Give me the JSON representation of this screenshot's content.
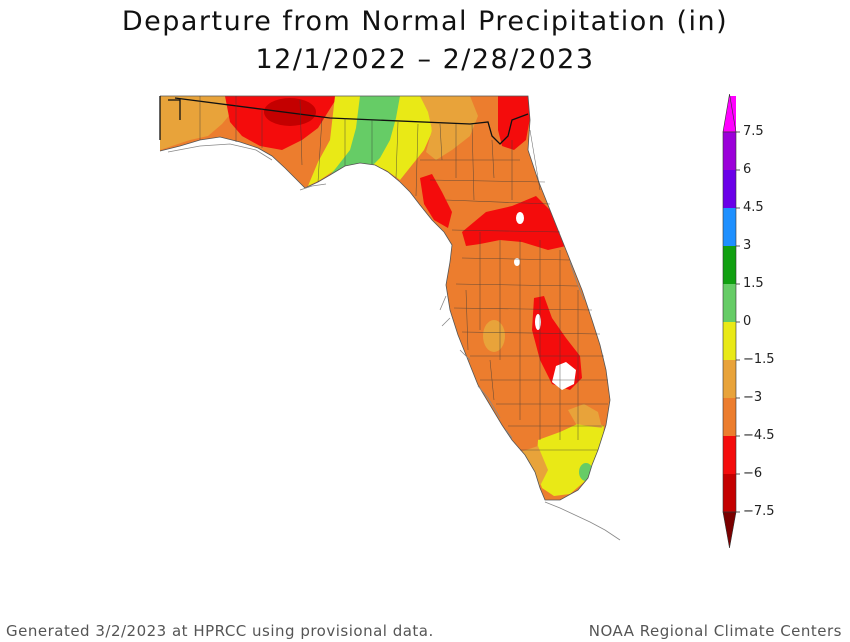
{
  "title": {
    "line1": "Departure from Normal Precipitation (in)",
    "line2": "12/1/2022 – 2/28/2023"
  },
  "legend": {
    "unit": "in",
    "ticks": [
      "7.5",
      "6",
      "4.5",
      "3",
      "1.5",
      "0",
      "−1.5",
      "−3",
      "−4.5",
      "−6",
      "−7.5"
    ],
    "bins": [
      {
        "range": ">7.5",
        "color": "#ff00ff"
      },
      {
        "range": "6 to 7.5",
        "color": "#9b00d9"
      },
      {
        "range": "4.5 to 6",
        "color": "#6a00e8"
      },
      {
        "range": "3 to 4.5",
        "color": "#1e90ff"
      },
      {
        "range": "1.5 to 3",
        "color": "#11a011"
      },
      {
        "range": "0 to 1.5",
        "color": "#66cc66"
      },
      {
        "range": "-1.5 to 0",
        "color": "#e9e916"
      },
      {
        "range": "-3 to -1.5",
        "color": "#e8a33a"
      },
      {
        "range": "-4.5 to -3",
        "color": "#ec7d2e"
      },
      {
        "range": "-6 to -4.5",
        "color": "#f40c0c"
      },
      {
        "range": "-7.5 to -6",
        "color": "#c40000"
      },
      {
        "range": "<-7.5",
        "color": "#7a0000"
      }
    ]
  },
  "map": {
    "region": "Florida",
    "dominant_category": "-4.5 to -3",
    "wetter_areas": [
      "Apalachicola / Big Bend corridor",
      "Miami-Dade spot"
    ],
    "driest_areas": [
      "Western Panhandle",
      "North-central peninsula",
      "Lake Okeechobee vicinity"
    ]
  },
  "footer": {
    "left": "Generated 3/2/2023 at HPRCC using provisional data.",
    "right": "NOAA Regional Climate Centers"
  }
}
